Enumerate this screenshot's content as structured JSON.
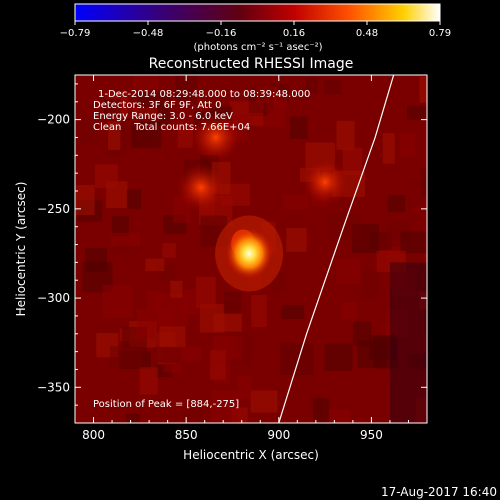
{
  "chart_data": {
    "type": "heatmap",
    "title": "Reconstructed RHESSI Image",
    "xlabel": "Heliocentric X (arcsec)",
    "ylabel": "Heliocentric Y (arcsec)",
    "xlim": [
      790,
      980
    ],
    "ylim": [
      -370,
      -175
    ],
    "xticks": [
      800,
      850,
      900,
      950
    ],
    "yticks": [
      -200,
      -250,
      -300,
      -350
    ],
    "colorbar": {
      "label": "(photons cm⁻² s⁻¹ asec⁻²)",
      "range": [
        -0.79,
        0.79
      ],
      "ticks": [
        "-0.79",
        "-0.48",
        "-0.16",
        "0.16",
        "0.48",
        "0.79"
      ],
      "colormap": "blue-purple-red-orange-yellow-white"
    },
    "annotations": {
      "time_range": "1-Dec-2014 08:29:48.000 to 08:39:48.000",
      "detectors": "Detectors: 3F 6F 9F, Att 0",
      "energy": "Energy Range: 3.0 - 6.0 keV",
      "clean": "Clean    Total counts: 7.66E+04",
      "peak": "Position of Peak = [884,-275]"
    },
    "peak_position": [
      884,
      -275
    ],
    "peak_value": 0.79,
    "secondary_sources": [
      {
        "x": 866,
        "y": -210,
        "value": 0.35
      },
      {
        "x": 858,
        "y": -238,
        "value": 0.32
      },
      {
        "x": 925,
        "y": -235,
        "value": 0.25
      }
    ],
    "limb_curve": [
      [
        900,
        -370
      ],
      [
        915,
        -320
      ],
      [
        935,
        -260
      ],
      [
        952,
        -210
      ],
      [
        962,
        -175
      ]
    ],
    "footer": "17-Aug-2017 16:40"
  }
}
